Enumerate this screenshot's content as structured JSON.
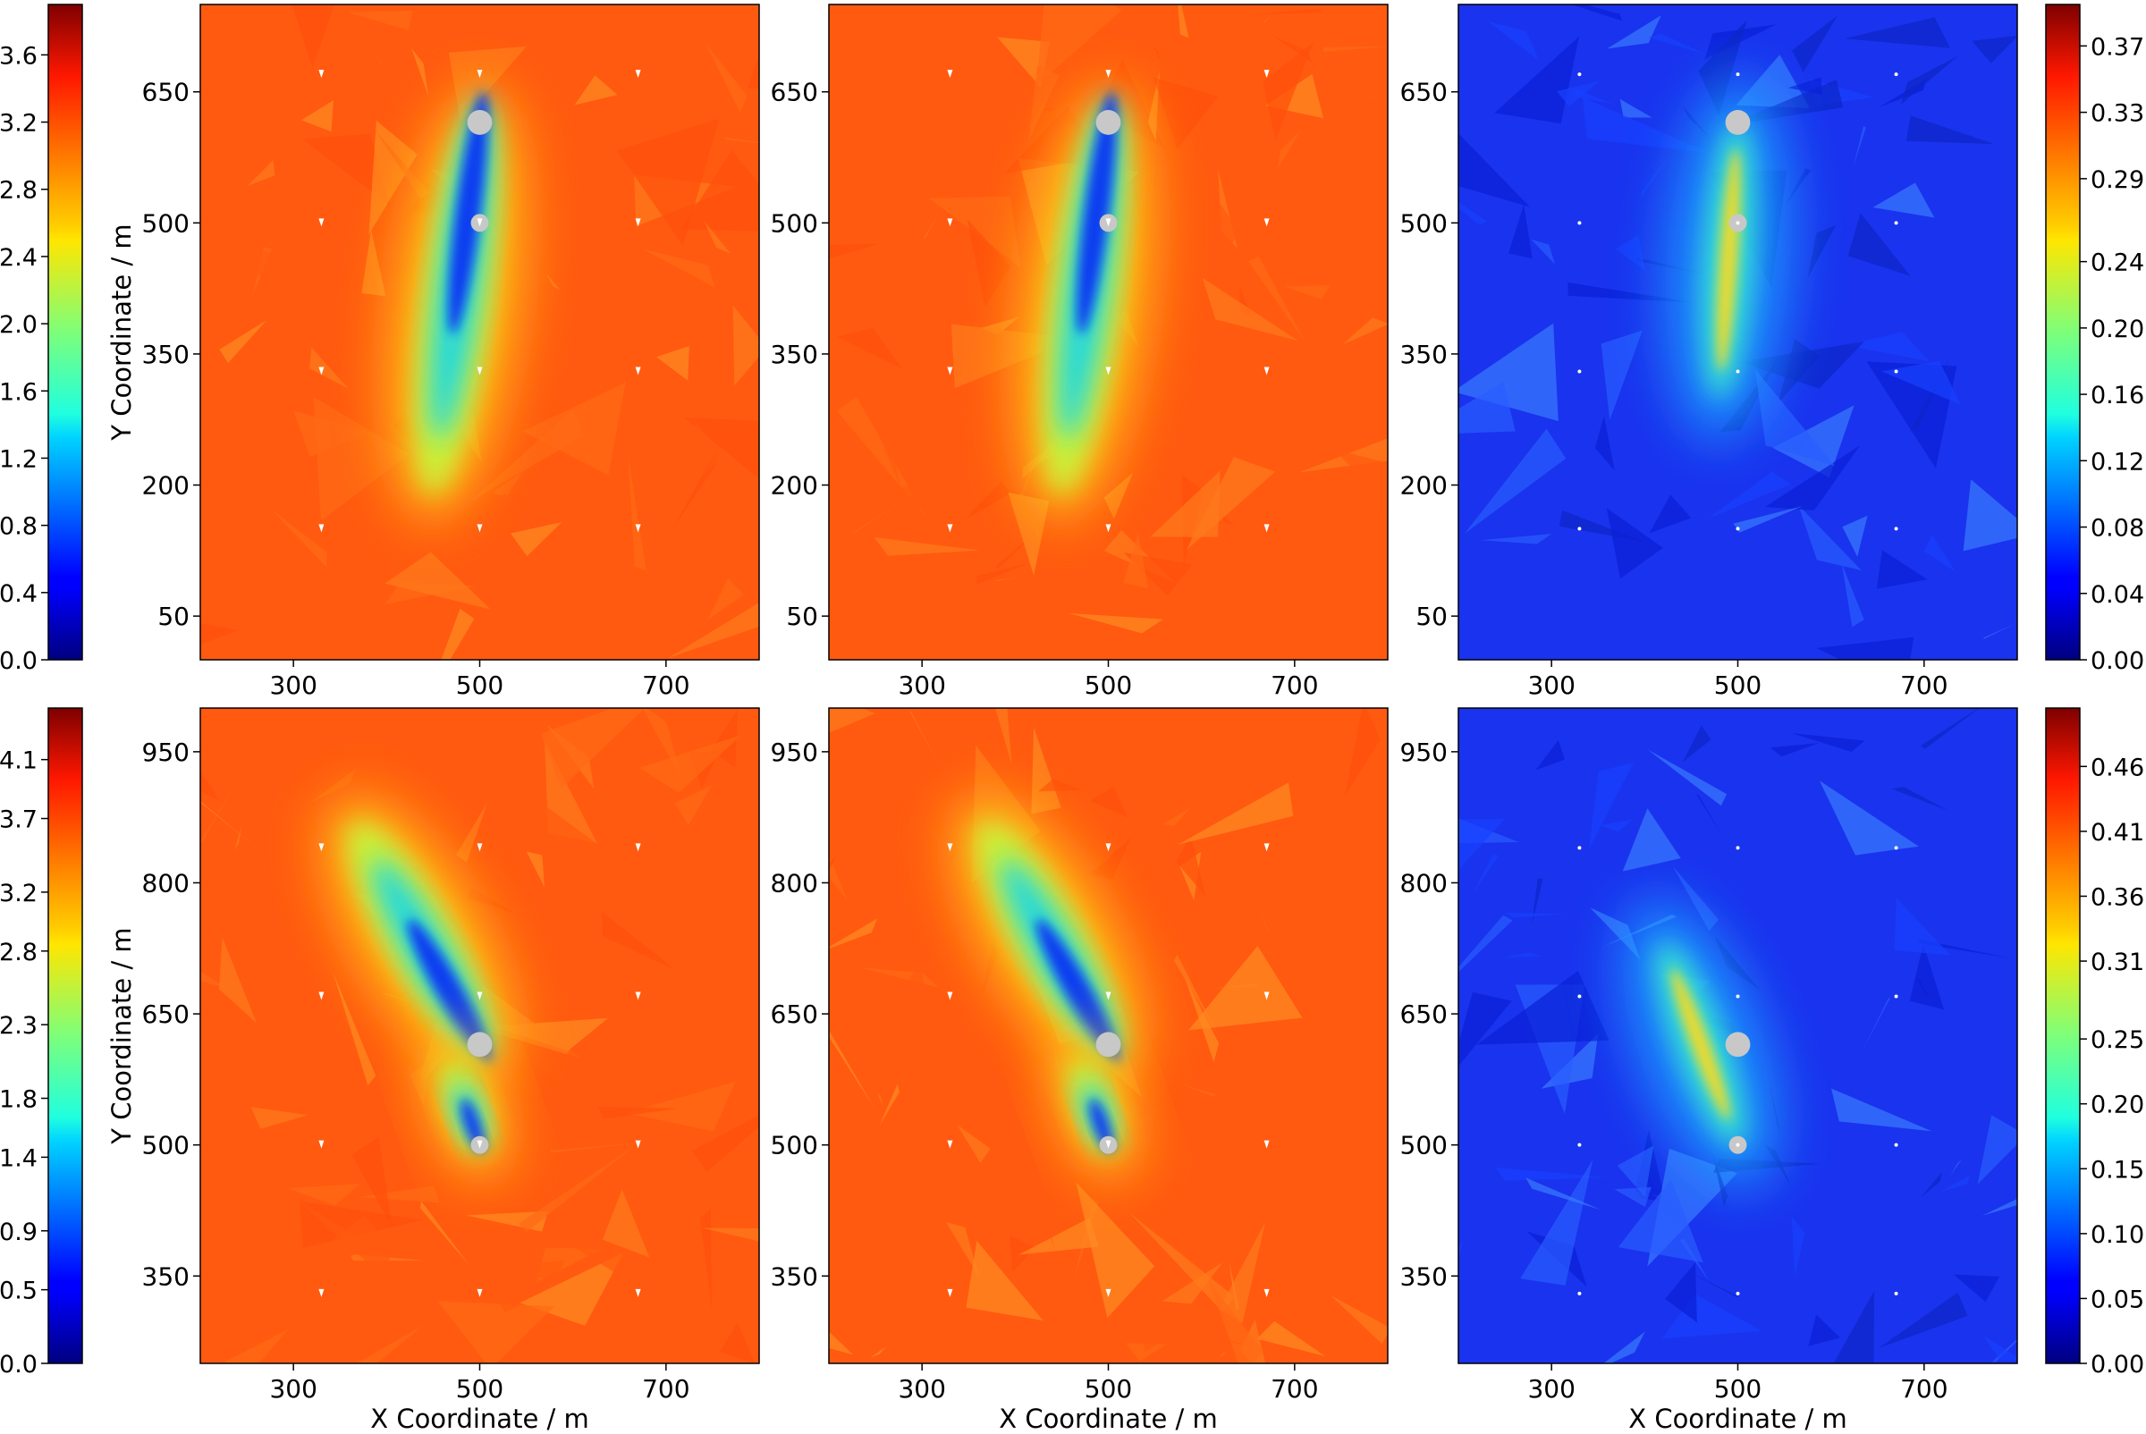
{
  "colors": {
    "field_background": "#ff5a10",
    "error_background": "#1a33ee",
    "turbine_disk": "#c8c8c8",
    "sample_marker": "#ffffff"
  },
  "chart_data": [
    {
      "type": "heatmap",
      "row": "top",
      "panel": "left",
      "xlabel": "",
      "ylabel": "Y Coordinate / m",
      "xlim": [
        200,
        800
      ],
      "ylim": [
        0,
        750
      ],
      "xticks": [
        "300",
        "500",
        "700"
      ],
      "yticks": [
        "50",
        "200",
        "350",
        "500",
        "650"
      ],
      "colormap": "jet",
      "turbines": [
        {
          "x": 500,
          "y": 615
        },
        {
          "x": 500,
          "y": 500
        }
      ],
      "wake": [
        {
          "x0": 500,
          "y0": 615,
          "x1": 450,
          "y1": 200,
          "value": "low"
        }
      ],
      "sample_points": {
        "x": [
          330,
          500,
          670
        ],
        "y": [
          150,
          330,
          500,
          670
        ]
      }
    },
    {
      "type": "heatmap",
      "row": "top",
      "panel": "middle",
      "xlabel": "",
      "ylabel": "",
      "xlim": [
        200,
        800
      ],
      "ylim": [
        0,
        750
      ],
      "xticks": [
        "300",
        "500",
        "700"
      ],
      "yticks": [
        "50",
        "200",
        "350",
        "500",
        "650"
      ],
      "colormap": "jet",
      "turbines": [
        {
          "x": 500,
          "y": 615
        },
        {
          "x": 500,
          "y": 500
        }
      ],
      "wake": [
        {
          "x0": 500,
          "y0": 615,
          "x1": 450,
          "y1": 200,
          "value": "low"
        }
      ],
      "sample_points": {
        "x": [
          330,
          500,
          670
        ],
        "y": [
          150,
          330,
          500,
          670
        ]
      }
    },
    {
      "type": "heatmap",
      "row": "top",
      "panel": "right",
      "xlabel": "",
      "ylabel": "",
      "xlim": [
        200,
        800
      ],
      "ylim": [
        0,
        750
      ],
      "xticks": [
        "300",
        "500",
        "700"
      ],
      "yticks": [
        "50",
        "200",
        "350",
        "500",
        "650"
      ],
      "colormap": "jet",
      "turbines": [
        {
          "x": 500,
          "y": 615
        },
        {
          "x": 500,
          "y": 500
        }
      ],
      "error_band": [
        {
          "x0": 500,
          "y0": 615,
          "x1": 480,
          "y1": 300,
          "value": "high"
        }
      ],
      "sample_points": {
        "x": [
          330,
          500,
          670
        ],
        "y": [
          150,
          330,
          500,
          670
        ]
      }
    },
    {
      "type": "heatmap",
      "row": "bottom",
      "panel": "left",
      "xlabel": "X Coordinate / m",
      "ylabel": "Y Coordinate / m",
      "xlim": [
        200,
        800
      ],
      "ylim": [
        250,
        1000
      ],
      "xticks": [
        "300",
        "500",
        "700"
      ],
      "yticks": [
        "350",
        "500",
        "650",
        "800",
        "950"
      ],
      "colormap": "jet",
      "turbines": [
        {
          "x": 500,
          "y": 615
        },
        {
          "x": 500,
          "y": 500
        }
      ],
      "wake": [
        {
          "x0": 500,
          "y0": 615,
          "x1": 370,
          "y1": 860,
          "value": "low"
        },
        {
          "x0": 500,
          "y0": 500,
          "x1": 470,
          "y1": 590,
          "value": "low"
        }
      ],
      "sample_points": {
        "x": [
          330,
          500,
          670
        ],
        "y": [
          330,
          500,
          670,
          840
        ]
      }
    },
    {
      "type": "heatmap",
      "row": "bottom",
      "panel": "middle",
      "xlabel": "X Coordinate / m",
      "ylabel": "",
      "xlim": [
        200,
        800
      ],
      "ylim": [
        250,
        1000
      ],
      "xticks": [
        "300",
        "500",
        "700"
      ],
      "yticks": [
        "350",
        "500",
        "650",
        "800",
        "950"
      ],
      "colormap": "jet",
      "turbines": [
        {
          "x": 500,
          "y": 615
        },
        {
          "x": 500,
          "y": 500
        }
      ],
      "wake": [
        {
          "x0": 500,
          "y0": 615,
          "x1": 370,
          "y1": 860,
          "value": "low"
        },
        {
          "x0": 500,
          "y0": 500,
          "x1": 470,
          "y1": 590,
          "value": "low"
        }
      ],
      "sample_points": {
        "x": [
          330,
          500,
          670
        ],
        "y": [
          330,
          500,
          670,
          840
        ]
      }
    },
    {
      "type": "heatmap",
      "row": "bottom",
      "panel": "right",
      "xlabel": "X Coordinate / m",
      "ylabel": "",
      "xlim": [
        200,
        800
      ],
      "ylim": [
        250,
        1000
      ],
      "xticks": [
        "300",
        "500",
        "700"
      ],
      "yticks": [
        "350",
        "500",
        "650",
        "800",
        "950"
      ],
      "colormap": "jet",
      "turbines": [
        {
          "x": 500,
          "y": 615
        },
        {
          "x": 500,
          "y": 500
        }
      ],
      "error_band": [
        {
          "x0": 500,
          "y0": 500,
          "x1": 420,
          "y1": 730,
          "value": "high"
        }
      ],
      "sample_points": {
        "x": [
          330,
          500,
          670
        ],
        "y": [
          330,
          500,
          670,
          840
        ]
      }
    }
  ],
  "colorbars": [
    {
      "row": "top",
      "side": "left",
      "min": 0,
      "max": 3.9,
      "ticks": [
        "0.0",
        "0.4",
        "0.8",
        "1.2",
        "1.6",
        "2.0",
        "2.4",
        "2.8",
        "3.2",
        "3.6"
      ],
      "values": [
        0,
        0.4,
        0.8,
        1.2,
        1.6,
        2.0,
        2.4,
        2.8,
        3.2,
        3.6
      ]
    },
    {
      "row": "top",
      "side": "right",
      "min": 0,
      "max": 0.395,
      "ticks": [
        "0.00",
        "0.04",
        "0.08",
        "0.12",
        "0.16",
        "0.20",
        "0.24",
        "0.29",
        "0.33",
        "0.37"
      ],
      "values": [
        0,
        0.04,
        0.08,
        0.12,
        0.16,
        0.2,
        0.24,
        0.29,
        0.33,
        0.37
      ]
    },
    {
      "row": "bottom",
      "side": "left",
      "min": 0,
      "max": 4.45,
      "ticks": [
        "0.0",
        "0.5",
        "0.9",
        "1.4",
        "1.8",
        "2.3",
        "2.8",
        "3.2",
        "3.7",
        "4.1"
      ],
      "values": [
        0,
        0.5,
        0.9,
        1.4,
        1.8,
        2.3,
        2.8,
        3.2,
        3.7,
        4.1
      ]
    },
    {
      "row": "bottom",
      "side": "right",
      "min": 0,
      "max": 0.505,
      "ticks": [
        "0.00",
        "0.05",
        "0.10",
        "0.15",
        "0.20",
        "0.25",
        "0.31",
        "0.36",
        "0.41",
        "0.46"
      ],
      "values": [
        0,
        0.05,
        0.1,
        0.15,
        0.2,
        0.25,
        0.31,
        0.36,
        0.41,
        0.46
      ]
    }
  ]
}
